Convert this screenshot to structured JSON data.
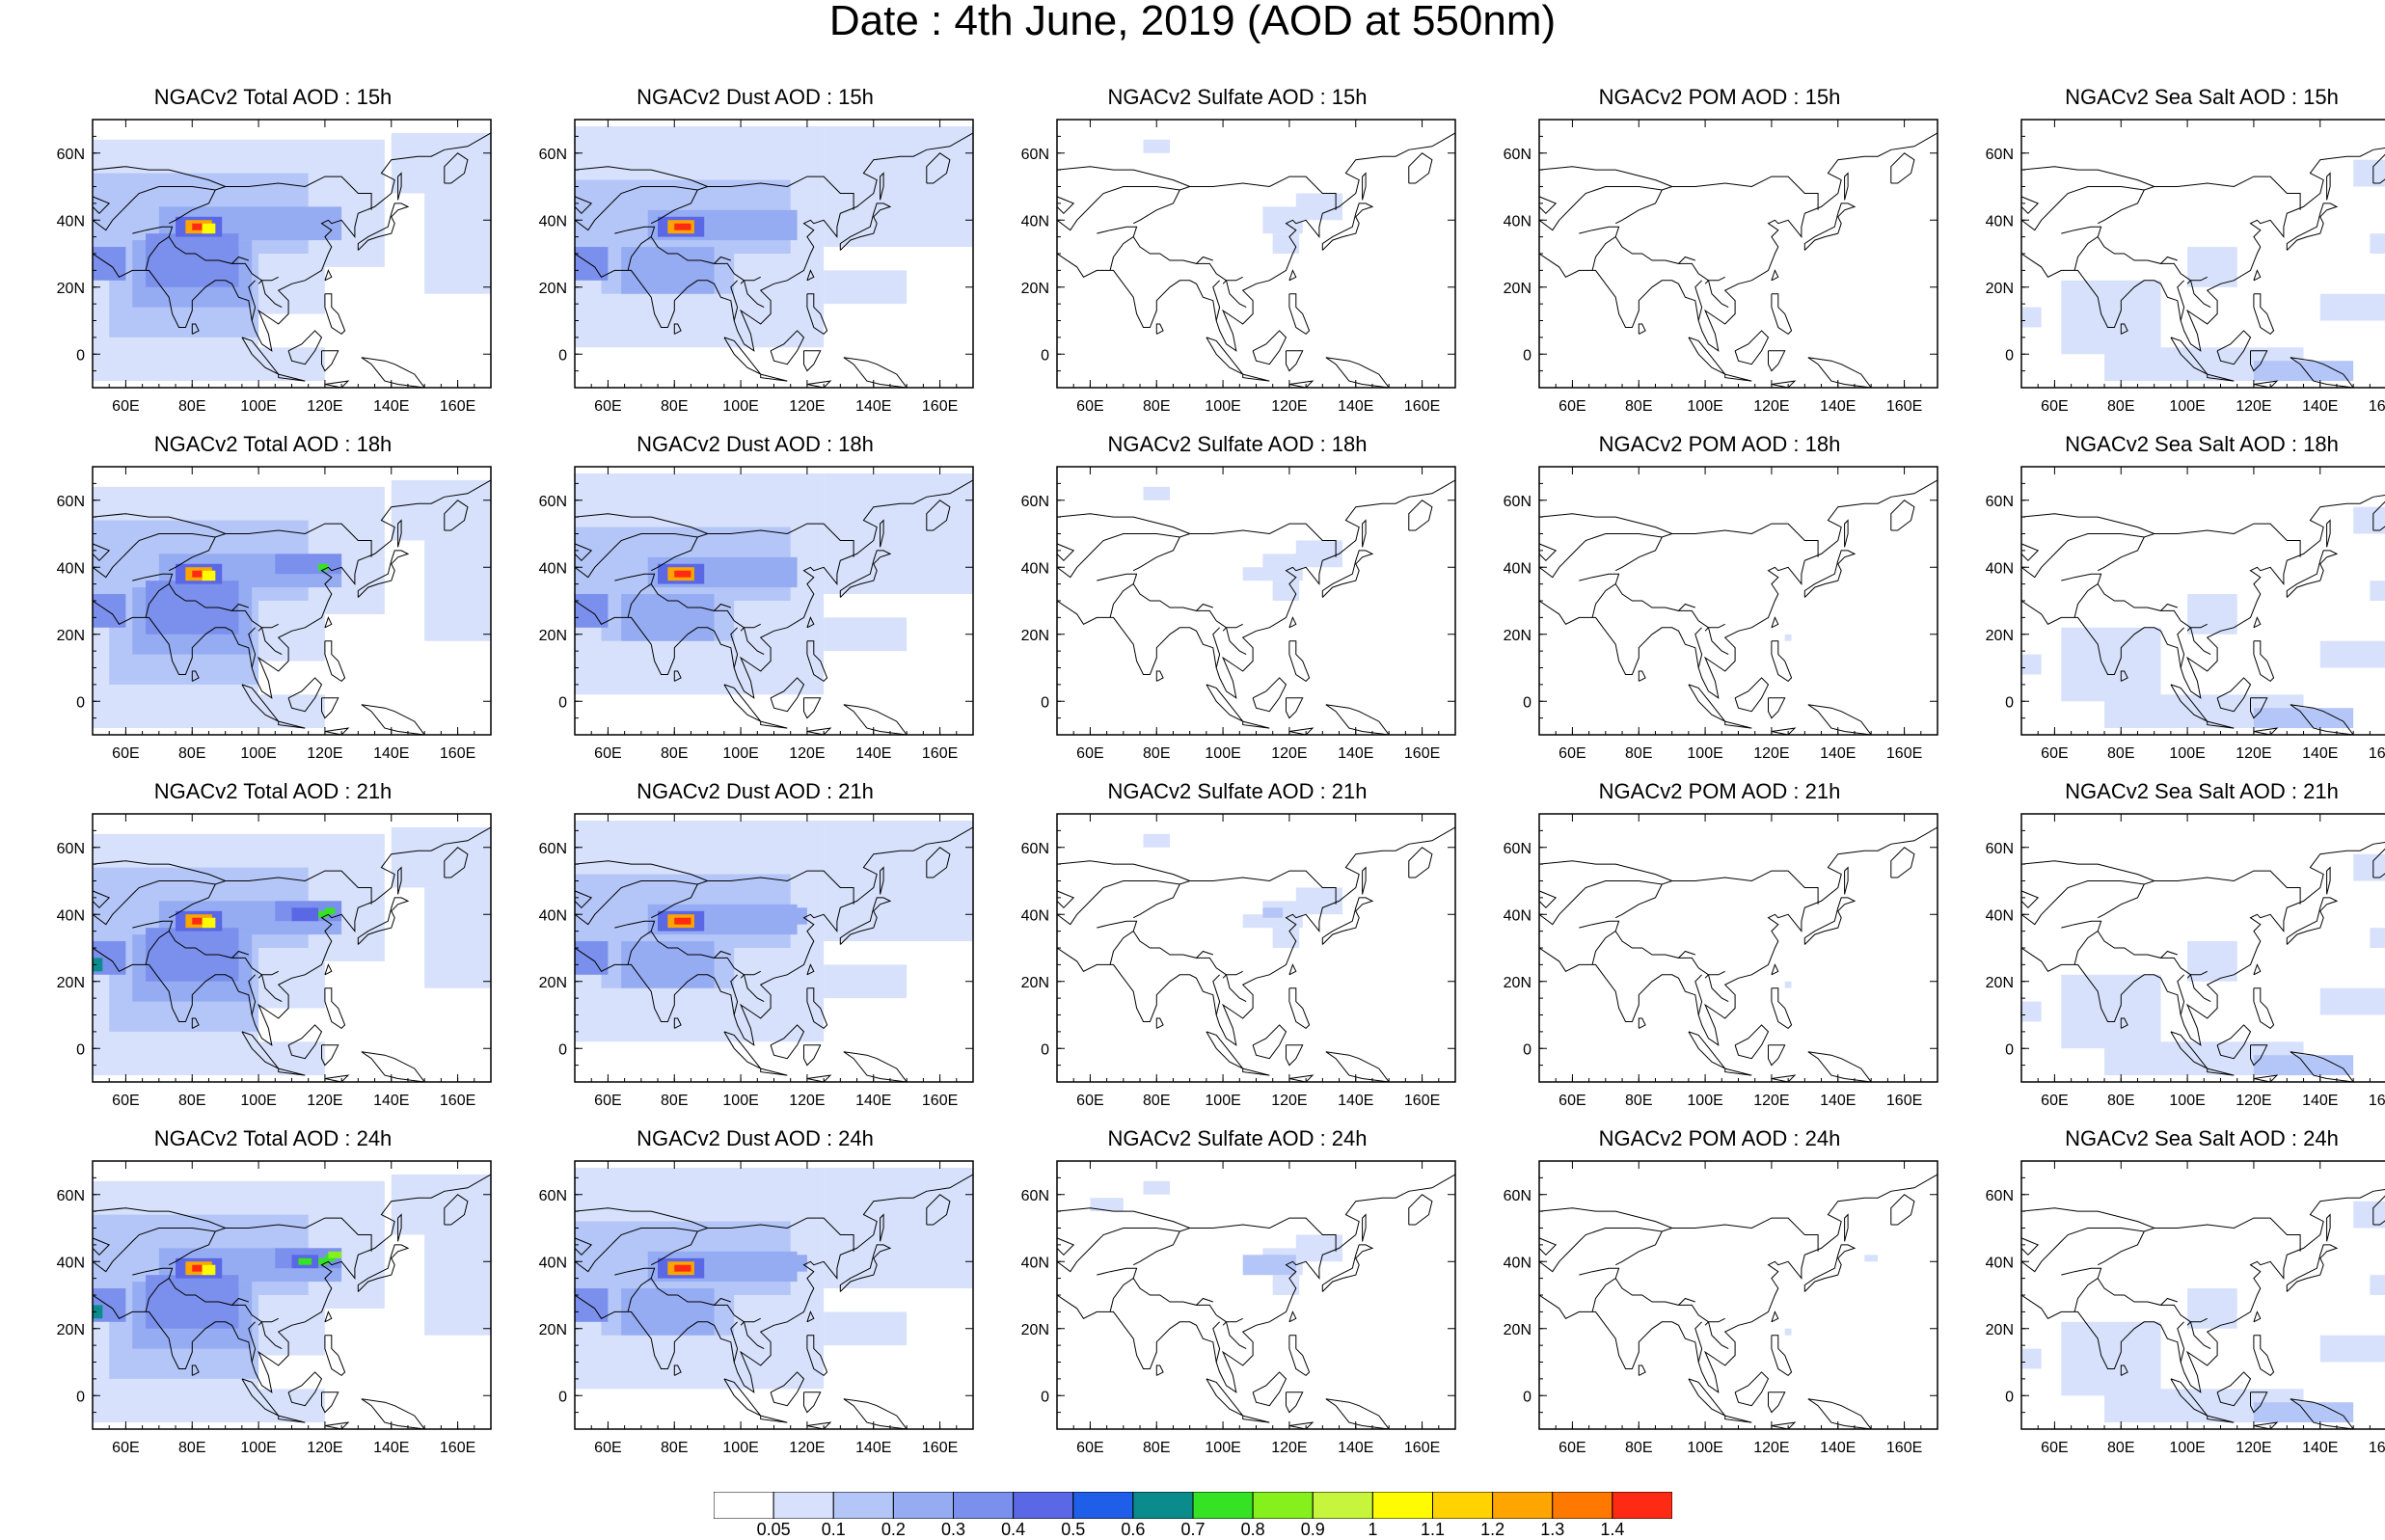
{
  "title": "Date : 4th June, 2019 (AOD at 550nm)",
  "colors": {
    "ocean_bg": "#ffffff",
    "coast": "#000000",
    "scale": [
      "#ffffff",
      "#d7e1fb",
      "#b4c6f7",
      "#95acf3",
      "#7b90ec",
      "#5a68e6",
      "#1e5ee8",
      "#0b8c8c",
      "#35e224",
      "#86f01d",
      "#c6f53c",
      "#fffb00",
      "#ffd200",
      "#ffa500",
      "#ff7800",
      "#ff2a14"
    ]
  },
  "colorbar": {
    "labels": [
      "0.05",
      "0.1",
      "0.2",
      "0.3",
      "0.4",
      "0.5",
      "0.6",
      "0.7",
      "0.8",
      "0.9",
      "1",
      "1.1",
      "1.2",
      "1.3",
      "1.4"
    ]
  },
  "axes": {
    "x_ticks": [
      "60E",
      "80E",
      "100E",
      "120E",
      "140E",
      "160E"
    ],
    "y_ticks": [
      "60N",
      "40N",
      "20N",
      "0"
    ],
    "lon_range": [
      50,
      170
    ],
    "lat_range": [
      -10,
      70
    ]
  },
  "panels": [
    [
      {
        "title": "NGACv2 Total AOD : 15h"
      },
      {
        "title": "NGACv2 Dust AOD : 15h"
      },
      {
        "title": "NGACv2 Sulfate AOD : 15h"
      },
      {
        "title": "NGACv2 POM AOD : 15h"
      },
      {
        "title": "NGACv2 Sea Salt AOD : 15h"
      }
    ],
    [
      {
        "title": "NGACv2 Total AOD : 18h"
      },
      {
        "title": "NGACv2 Dust AOD : 18h"
      },
      {
        "title": "NGACv2 Sulfate AOD : 18h"
      },
      {
        "title": "NGACv2 POM AOD : 18h"
      },
      {
        "title": "NGACv2 Sea Salt AOD : 18h"
      }
    ],
    [
      {
        "title": "NGACv2 Total AOD : 21h"
      },
      {
        "title": "NGACv2 Dust AOD : 21h"
      },
      {
        "title": "NGACv2 Sulfate AOD : 21h"
      },
      {
        "title": "NGACv2 POM AOD : 21h"
      },
      {
        "title": "NGACv2 Sea Salt AOD : 21h"
      }
    ],
    [
      {
        "title": "NGACv2 Total AOD : 24h"
      },
      {
        "title": "NGACv2 Dust AOD : 24h"
      },
      {
        "title": "NGACv2 Sulfate AOD : 24h"
      },
      {
        "title": "NGACv2 POM AOD : 24h"
      },
      {
        "title": "NGACv2 Sea Salt  AOD : 24h"
      }
    ]
  ]
}
